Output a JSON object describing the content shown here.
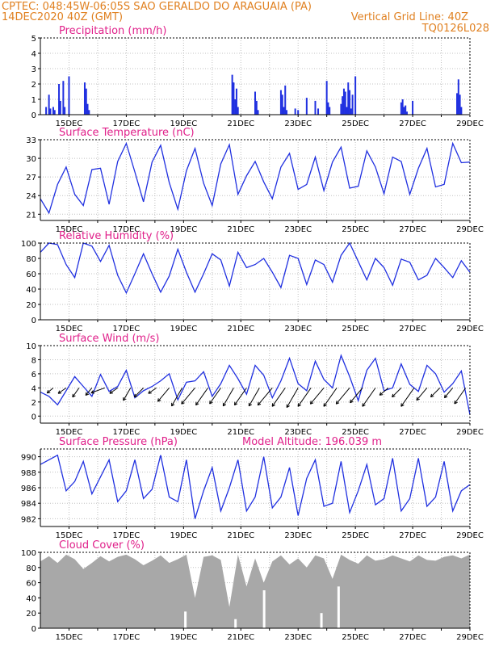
{
  "header": {
    "station": "CPTEC:   048:45W-06:05S  SAO GERALDO DO ARAGUAIA (PA)",
    "date": "14DEC2020 40Z (GMT)",
    "grid_line": "Vertical Grid Line: 40Z",
    "code": "TQ0126L028"
  },
  "colors": {
    "line": "#2030e0",
    "cloud": "#a8a8a8",
    "title": "#e0208a",
    "header": "#e08020",
    "grid": "#c0c0c0"
  },
  "x_axis": {
    "start": 14.0,
    "end": 29.0,
    "ticks": [
      15,
      17,
      19,
      21,
      23,
      25,
      27,
      29
    ],
    "tick_labels": [
      "15DEC",
      "17DEC",
      "19DEC",
      "21DEC",
      "23DEC",
      "25DEC",
      "27DEC",
      "29DEC"
    ],
    "grid_positions": [
      15,
      16,
      17,
      18,
      19,
      20,
      21,
      22,
      23,
      24,
      25,
      26,
      27,
      28
    ]
  },
  "model_altitude": "Model Altitude: 196.039 m",
  "chart_data": [
    {
      "type": "bar",
      "title": "Precipitation (mm/h)",
      "ylim": [
        0,
        5
      ],
      "yticks": [
        0,
        1,
        2,
        3,
        4,
        5
      ],
      "x": [
        14.2,
        14.3,
        14.35,
        14.45,
        14.5,
        14.65,
        14.7,
        14.8,
        14.85,
        15.0,
        15.55,
        15.6,
        15.65,
        15.7,
        20.7,
        20.75,
        20.8,
        20.85,
        20.9,
        21.5,
        21.55,
        21.6,
        22.4,
        22.45,
        22.5,
        22.55,
        22.6,
        22.9,
        23.0,
        23.3,
        23.6,
        23.7,
        24.0,
        24.05,
        24.1,
        24.5,
        24.55,
        24.6,
        24.65,
        24.7,
        24.75,
        24.8,
        24.85,
        24.9,
        25.0,
        26.6,
        26.65,
        26.7,
        26.75,
        26.8,
        27.0,
        28.55,
        28.6,
        28.65,
        28.7
      ],
      "values": [
        0.5,
        1.3,
        0.4,
        0.5,
        0.3,
        2.0,
        0.9,
        2.2,
        0.5,
        2.5,
        2.1,
        1.7,
        0.7,
        0.3,
        2.6,
        2.1,
        1.0,
        1.7,
        0.5,
        1.5,
        0.9,
        0.3,
        1.6,
        1.3,
        0.5,
        1.9,
        0.3,
        0.4,
        0.3,
        1.1,
        0.9,
        0.4,
        2.2,
        0.8,
        0.5,
        0.7,
        1.2,
        1.7,
        1.5,
        0.5,
        2.1,
        1.6,
        0.4,
        1.3,
        2.5,
        0.8,
        1.0,
        0.5,
        0.6,
        0.2,
        0.9,
        1.4,
        2.3,
        1.3,
        0.5
      ]
    },
    {
      "type": "line",
      "title": "Surface Temperature (nC)",
      "ylim": [
        20,
        33
      ],
      "yticks": [
        21,
        24,
        27,
        30,
        33
      ],
      "x": [
        14.0,
        14.3,
        14.6,
        14.9,
        15.2,
        15.5,
        15.8,
        16.1,
        16.4,
        16.7,
        17.0,
        17.3,
        17.6,
        17.9,
        18.2,
        18.5,
        18.8,
        19.1,
        19.4,
        19.7,
        20.0,
        20.3,
        20.6,
        20.9,
        21.2,
        21.5,
        21.8,
        22.1,
        22.4,
        22.7,
        23.0,
        23.3,
        23.6,
        23.9,
        24.2,
        24.5,
        24.8,
        25.1,
        25.4,
        25.7,
        26.0,
        26.3,
        26.6,
        26.9,
        27.2,
        27.5,
        27.8,
        28.1,
        28.4,
        28.7,
        29.0
      ],
      "values": [
        23.5,
        21.2,
        25.8,
        28.6,
        24.2,
        22.4,
        28.2,
        28.4,
        22.6,
        29.5,
        32.4,
        27.8,
        23.0,
        29.4,
        32.1,
        26.1,
        21.8,
        28.0,
        31.6,
        26.0,
        22.4,
        29.1,
        32.2,
        24.2,
        27.2,
        29.5,
        26.2,
        23.5,
        28.6,
        30.8,
        25.0,
        25.8,
        30.2,
        24.8,
        29.4,
        31.8,
        25.2,
        25.5,
        31.2,
        28.6,
        24.3,
        30.2,
        29.5,
        24.2,
        28.4,
        31.6,
        25.4,
        25.8,
        32.4,
        29.3,
        29.4
      ]
    },
    {
      "type": "line",
      "title": "Relative Humidity (%)",
      "ylim": [
        0,
        100
      ],
      "yticks": [
        0,
        20,
        40,
        60,
        80,
        100
      ],
      "x": [
        14.0,
        14.3,
        14.6,
        14.9,
        15.2,
        15.5,
        15.8,
        16.1,
        16.4,
        16.7,
        17.0,
        17.3,
        17.6,
        17.9,
        18.2,
        18.5,
        18.8,
        19.1,
        19.4,
        19.7,
        20.0,
        20.3,
        20.6,
        20.9,
        21.2,
        21.5,
        21.8,
        22.1,
        22.4,
        22.7,
        23.0,
        23.3,
        23.6,
        23.9,
        24.2,
        24.5,
        24.8,
        25.1,
        25.4,
        25.7,
        26.0,
        26.3,
        26.6,
        26.9,
        27.2,
        27.5,
        27.8,
        28.1,
        28.4,
        28.7,
        29.0
      ],
      "values": [
        88,
        100,
        98,
        72,
        55,
        100,
        96,
        76,
        97,
        58,
        35,
        60,
        86,
        60,
        36,
        57,
        92,
        62,
        36,
        60,
        86,
        78,
        44,
        88,
        68,
        72,
        80,
        62,
        42,
        84,
        80,
        46,
        78,
        72,
        49,
        84,
        100,
        76,
        52,
        80,
        68,
        45,
        79,
        75,
        52,
        58,
        80,
        68,
        55,
        77,
        62
      ]
    },
    {
      "type": "line",
      "title": "Surface Wind (m/s)",
      "ylim": [
        -1,
        10
      ],
      "yticks": [
        0,
        2,
        4,
        6,
        8,
        10
      ],
      "x": [
        14.0,
        14.3,
        14.6,
        14.9,
        15.2,
        15.5,
        15.8,
        16.1,
        16.4,
        16.7,
        17.0,
        17.3,
        17.6,
        17.9,
        18.2,
        18.5,
        18.8,
        19.1,
        19.4,
        19.7,
        20.0,
        20.3,
        20.6,
        20.9,
        21.2,
        21.5,
        21.8,
        22.1,
        22.4,
        22.7,
        23.0,
        23.3,
        23.6,
        23.9,
        24.2,
        24.5,
        24.8,
        25.1,
        25.4,
        25.7,
        26.0,
        26.3,
        26.6,
        26.9,
        27.2,
        27.5,
        27.8,
        28.1,
        28.4,
        28.7,
        29.0
      ],
      "values": [
        3.4,
        2.8,
        1.6,
        3.6,
        5.6,
        4.2,
        2.8,
        5.9,
        3.5,
        4.2,
        6.5,
        2.6,
        3.6,
        4.2,
        5.0,
        6.0,
        2.3,
        4.8,
        5.0,
        6.3,
        2.8,
        4.6,
        7.2,
        5.3,
        3.1,
        7.2,
        5.8,
        2.6,
        5.0,
        8.2,
        4.6,
        3.6,
        7.8,
        5.2,
        4.0,
        8.6,
        5.6,
        2.2,
        6.5,
        8.2,
        3.6,
        4.0,
        7.4,
        4.5,
        3.5,
        7.2,
        6.0,
        3.4,
        4.6,
        6.4,
        0.2
      ],
      "arrows": {
        "x": [
          14.45,
          14.9,
          15.35,
          15.8,
          16.25,
          16.7,
          17.15,
          17.6,
          18.05,
          18.5,
          18.95,
          19.4,
          19.85,
          20.3,
          20.75,
          21.2,
          21.65,
          22.1,
          22.55,
          23.0,
          23.45,
          23.9,
          24.35,
          24.8,
          25.25,
          25.7,
          26.15,
          26.6,
          27.05,
          27.5,
          27.95,
          28.4,
          28.85
        ],
        "y": [
          4.0,
          4.0,
          4.0,
          4.0,
          4.0,
          4.0,
          4.0,
          4.0,
          4.0,
          4.0,
          4.0,
          4.0,
          4.0,
          4.0,
          4.0,
          4.0,
          4.0,
          4.0,
          4.0,
          4.0,
          4.0,
          4.0,
          4.0,
          4.0,
          4.0,
          4.0,
          4.0,
          4.0,
          4.0,
          4.0,
          4.0,
          4.0,
          4.0
        ],
        "angle": [
          220,
          215,
          235,
          230,
          200,
          215,
          240,
          225,
          215,
          230,
          240,
          230,
          235,
          235,
          240,
          235,
          240,
          230,
          235,
          240,
          235,
          230,
          235,
          230,
          230,
          235,
          220,
          225,
          235,
          230,
          225,
          230,
          235
        ],
        "length": [
          10,
          12,
          14,
          12,
          18,
          12,
          18,
          16,
          12,
          22,
          26,
          26,
          26,
          24,
          26,
          26,
          26,
          28,
          28,
          28,
          28,
          26,
          28,
          26,
          24,
          28,
          14,
          16,
          28,
          20,
          16,
          16,
          24
        ]
      }
    },
    {
      "type": "line",
      "title": "Surface Pressure (hPa)",
      "ylim": [
        981,
        991
      ],
      "yticks": [
        982,
        984,
        986,
        988,
        990
      ],
      "x": [
        14.0,
        14.3,
        14.6,
        14.9,
        15.2,
        15.5,
        15.8,
        16.1,
        16.4,
        16.7,
        17.0,
        17.3,
        17.6,
        17.9,
        18.2,
        18.5,
        18.8,
        19.1,
        19.4,
        19.7,
        20.0,
        20.3,
        20.6,
        20.9,
        21.2,
        21.5,
        21.8,
        22.1,
        22.4,
        22.7,
        23.0,
        23.3,
        23.6,
        23.9,
        24.2,
        24.5,
        24.8,
        25.1,
        25.4,
        25.7,
        26.0,
        26.3,
        26.6,
        26.9,
        27.2,
        27.5,
        27.8,
        28.1,
        28.4,
        28.7,
        29.0
      ],
      "values": [
        989.0,
        989.6,
        990.2,
        985.6,
        986.8,
        989.4,
        985.2,
        987.4,
        989.6,
        984.2,
        985.6,
        989.6,
        984.6,
        985.8,
        990.2,
        984.8,
        984.2,
        989.6,
        982.0,
        985.6,
        988.6,
        983.0,
        986.0,
        989.6,
        983.0,
        984.8,
        990.0,
        983.4,
        984.8,
        988.6,
        982.4,
        987.2,
        989.6,
        983.6,
        984.0,
        989.4,
        982.8,
        985.6,
        989.0,
        983.8,
        984.6,
        989.8,
        983.0,
        984.6,
        989.8,
        983.6,
        984.8,
        989.4,
        983.0,
        985.6,
        986.4
      ]
    },
    {
      "type": "area",
      "title": "Cloud Cover (%)",
      "ylim": [
        0,
        100
      ],
      "yticks": [
        0,
        20,
        40,
        60,
        80,
        100
      ],
      "x": [
        14.0,
        14.3,
        14.6,
        14.9,
        15.2,
        15.5,
        15.8,
        16.1,
        16.4,
        16.7,
        17.0,
        17.3,
        17.6,
        17.9,
        18.2,
        18.5,
        18.8,
        19.1,
        19.4,
        19.7,
        20.0,
        20.3,
        20.6,
        20.9,
        21.2,
        21.5,
        21.8,
        22.1,
        22.4,
        22.7,
        23.0,
        23.3,
        23.6,
        23.9,
        24.2,
        24.5,
        24.8,
        25.1,
        25.4,
        25.7,
        26.0,
        26.3,
        26.6,
        26.9,
        27.2,
        27.5,
        27.8,
        28.1,
        28.4,
        28.7,
        29.0
      ],
      "values": [
        88,
        95,
        86,
        97,
        91,
        78,
        86,
        95,
        88,
        94,
        97,
        91,
        83,
        89,
        96,
        86,
        91,
        97,
        40,
        94,
        96,
        90,
        28,
        97,
        55,
        92,
        60,
        88,
        96,
        84,
        92,
        80,
        96,
        92,
        65,
        97,
        90,
        85,
        96,
        89,
        91,
        96,
        92,
        88,
        96,
        90,
        89,
        94,
        96,
        92,
        97
      ],
      "dips": [
        {
          "x": 19.05,
          "y": 22
        },
        {
          "x": 20.8,
          "y": 12
        },
        {
          "x": 21.8,
          "y": 50
        },
        {
          "x": 23.8,
          "y": 20
        },
        {
          "x": 24.4,
          "y": 55
        }
      ]
    }
  ]
}
